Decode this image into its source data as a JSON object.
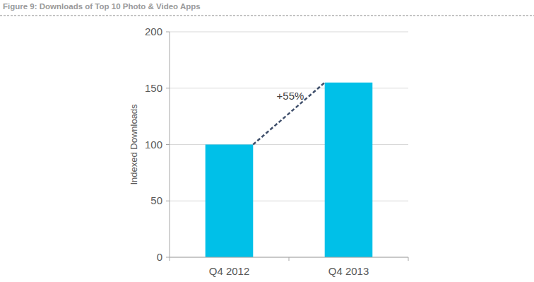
{
  "chart_data": {
    "type": "bar",
    "title": "Figure 9: Downloads of Top 10 Photo & Video Apps",
    "categories": [
      "Q4 2012",
      "Q4 2013"
    ],
    "values": [
      100,
      155
    ],
    "color": "#00c0e8",
    "y_label": "Indexed Downloads",
    "annotation": "+55%",
    "ylim": [
      0,
      200
    ],
    "yticks": [
      0,
      50,
      100,
      150,
      200
    ],
    "grid": true
  }
}
